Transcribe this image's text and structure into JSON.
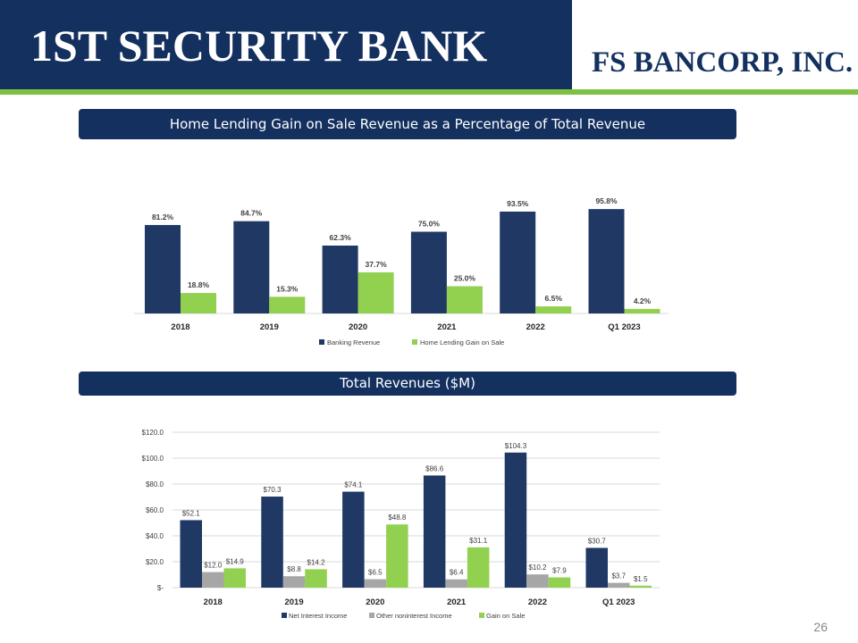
{
  "header": {
    "left_brand": "1ST SECURITY BANK",
    "right_brand": "FS BANCORP, INC.",
    "band_color": "#13305f",
    "accent_color": "#7dc143"
  },
  "page_number": "26",
  "chart_data": [
    {
      "type": "bar",
      "title": "Home Lending Gain on Sale Revenue as a Percentage of Total Revenue",
      "categories": [
        "2018",
        "2019",
        "2020",
        "2021",
        "2022",
        "Q1 2023"
      ],
      "series": [
        {
          "name": "Banking Revenue",
          "color": "#1f3864",
          "values": [
            81.2,
            84.7,
            62.3,
            75.0,
            93.5,
            95.8
          ],
          "labels": [
            "81.2%",
            "84.7%",
            "62.3%",
            "75.0%",
            "93.5%",
            "95.8%"
          ]
        },
        {
          "name": "Home Lending Gain on Sale",
          "color": "#92d050",
          "values": [
            18.8,
            15.3,
            37.7,
            25.0,
            6.5,
            4.2
          ],
          "labels": [
            "18.8%",
            "15.3%",
            "37.7%",
            "25.0%",
            "6.5%",
            "4.2%"
          ]
        }
      ],
      "ylim": [
        0,
        100
      ],
      "grid": false,
      "legend": "bottom"
    },
    {
      "type": "bar",
      "title": "Total Revenues ($M)",
      "categories": [
        "2018",
        "2019",
        "2020",
        "2021",
        "2022",
        "Q1 2023"
      ],
      "series": [
        {
          "name": "Net Interest Income",
          "color": "#1f3864",
          "values": [
            52.1,
            70.3,
            74.1,
            86.6,
            104.3,
            30.7
          ],
          "labels": [
            "$52.1",
            "$70.3",
            "$74.1",
            "$86.6",
            "$104.3",
            "$30.7"
          ]
        },
        {
          "name": "Other noninterest Income",
          "color": "#a6a6a6",
          "values": [
            12.0,
            8.8,
            6.5,
            6.4,
            10.2,
            3.7
          ],
          "labels": [
            "$12.0",
            "$8.8",
            "$6.5",
            "$6.4",
            "$10.2",
            "$3.7"
          ]
        },
        {
          "name": "Gain on Sale",
          "color": "#92d050",
          "values": [
            14.9,
            14.2,
            48.8,
            31.1,
            7.9,
            1.5
          ],
          "labels": [
            "$14.9",
            "$14.2",
            "$48.8",
            "$31.1",
            "$7.9",
            "$1.5"
          ]
        }
      ],
      "yticks": [
        0,
        20,
        40,
        60,
        80,
        100,
        120
      ],
      "yticklabels": [
        "$-",
        "$20.0",
        "$40.0",
        "$60.0",
        "$80.0",
        "$100.0",
        "$120.0"
      ],
      "ylim": [
        0,
        120
      ],
      "grid": true,
      "legend": "bottom"
    }
  ]
}
